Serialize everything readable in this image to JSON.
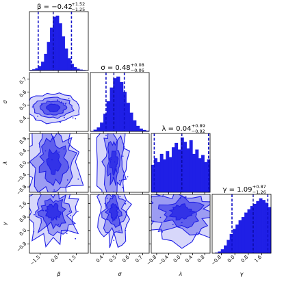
{
  "chart_data": {
    "type": "corner",
    "color": "#1f1fe6",
    "parameters": [
      {
        "symbol": "β",
        "median": -0.42,
        "plus": 1.52,
        "minus": 1.25,
        "range": [
          -2.4,
          2.5
        ],
        "ticks": [
          -1.5,
          0.0,
          1.5
        ],
        "tick_labels": [
          "−1.5",
          "0.0",
          "1.5"
        ],
        "title_main": "β = −0.42",
        "title_plus": "+1.52",
        "title_minus": "−1.25"
      },
      {
        "symbol": "σ",
        "median": 0.48,
        "plus": 0.08,
        "minus": 0.06,
        "range": [
          0.3,
          0.75
        ],
        "ticks": [
          0.4,
          0.5,
          0.6,
          0.7
        ],
        "tick_labels": [
          "0.4",
          "0.5",
          "0.6",
          "0.7"
        ],
        "title_main": "σ = 0.48",
        "title_plus": "+0.08",
        "title_minus": "−0.06"
      },
      {
        "symbol": "λ",
        "median": 0.04,
        "plus": 0.89,
        "minus": 0.92,
        "range": [
          -0.98,
          0.98
        ],
        "ticks": [
          -0.8,
          -0.4,
          0.0,
          0.4,
          0.8
        ],
        "tick_labels": [
          "−0.8",
          "−0.4",
          "0.0",
          "0.4",
          "0.8"
        ],
        "title_main": "λ = 0.04",
        "title_plus": "+0.89",
        "title_minus": "−0.92"
      },
      {
        "symbol": "γ",
        "median": 1.09,
        "plus": 0.87,
        "minus": 1.26,
        "range": [
          -1.35,
          2.15
        ],
        "ticks": [
          -0.8,
          0.0,
          0.8,
          1.6
        ],
        "tick_labels": [
          "−0.8",
          "0.0",
          "0.8",
          "1.6"
        ],
        "title_main": "γ = 1.09",
        "title_plus": "+0.87",
        "title_minus": "−1.26"
      }
    ],
    "hist_shapes": {
      "beta": [
        0.01,
        0.02,
        0.04,
        0.08,
        0.16,
        0.3,
        0.52,
        0.78,
        0.98,
        1.0,
        0.86,
        0.62,
        0.4,
        0.22,
        0.12,
        0.06,
        0.03,
        0.015,
        0.008,
        0.004
      ],
      "sigma": [
        0.01,
        0.03,
        0.07,
        0.16,
        0.32,
        0.55,
        0.8,
        0.97,
        1.0,
        0.9,
        0.72,
        0.52,
        0.34,
        0.2,
        0.1,
        0.05,
        0.025,
        0.012
      ],
      "lambda": [
        0.5,
        0.62,
        0.55,
        0.7,
        0.6,
        0.75,
        0.64,
        0.82,
        0.9,
        0.78,
        1.0,
        0.92,
        0.8,
        0.95,
        0.7,
        0.78,
        0.62,
        0.68,
        0.55,
        0.6
      ],
      "gamma": [
        0.0,
        0.01,
        0.03,
        0.07,
        0.14,
        0.24,
        0.35,
        0.44,
        0.52,
        0.6,
        0.66,
        0.74,
        0.8,
        0.86,
        0.9,
        0.95,
        1.0,
        0.97,
        0.92,
        0.84
      ]
    }
  }
}
